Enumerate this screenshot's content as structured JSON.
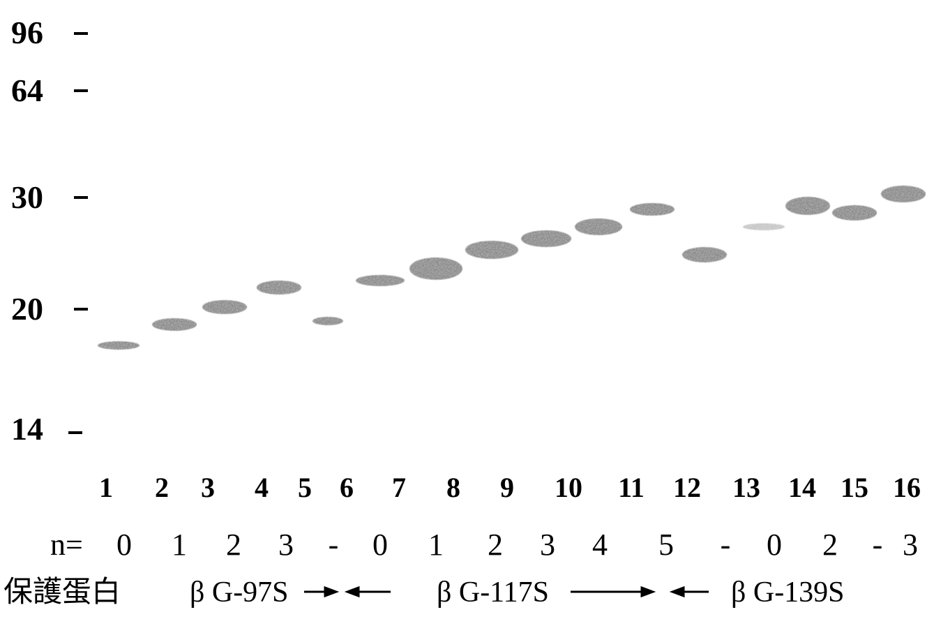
{
  "markers": [
    "96",
    "64",
    "30",
    "20",
    "14"
  ],
  "lanes": [
    "1",
    "2",
    "3",
    "4",
    "5",
    "6",
    "7",
    "8",
    "9",
    "10",
    "11",
    "12",
    "13",
    "14",
    "15",
    "16"
  ],
  "n_label": "n=",
  "n_values": [
    "0",
    "1",
    "2",
    "3",
    "-",
    "0",
    "1",
    "2",
    "3",
    "4",
    "5",
    "-",
    "0",
    "2",
    "-",
    "3"
  ],
  "groups": [
    "保護蛋白",
    "β G-97S",
    "β G-117S",
    "β G-139S"
  ]
}
